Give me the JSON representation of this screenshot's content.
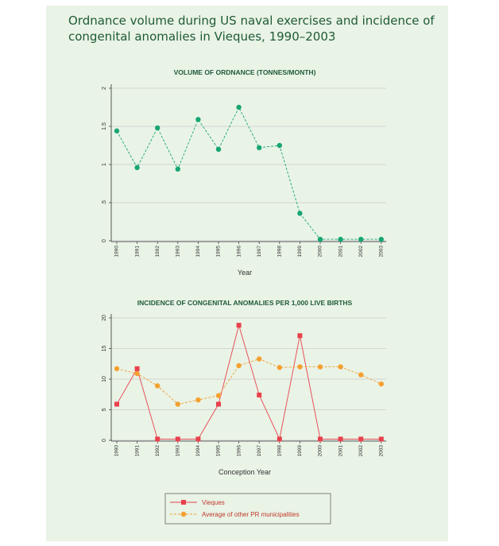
{
  "title": "Ordnance volume during US naval exercises and incidence of congenital anomalies in Vieques, 1990–2003",
  "colors": {
    "background": "#e9f3e6",
    "title": "#1f5a3a",
    "ordnance": "#17a673",
    "vieques": "#e8414c",
    "average": "#f5a030"
  },
  "chart_data": [
    {
      "type": "line",
      "title": "VOLUME OF ORDNANCE (TONNES/MONTH)",
      "xlabel": "Year",
      "ylabel": "",
      "categories": [
        "1990",
        "1991",
        "1992",
        "1993",
        "1994",
        "1995",
        "1996",
        "1997",
        "1998",
        "1999",
        "2000",
        "2001",
        "2002",
        "2003"
      ],
      "yticks": [
        "0",
        ".5",
        "1",
        "1.5",
        "2"
      ],
      "ylim": [
        0,
        2
      ],
      "grid": true,
      "series": [
        {
          "values": [
            1.44,
            0.96,
            1.48,
            0.94,
            1.59,
            1.2,
            1.75,
            1.22,
            1.25,
            0.36,
            0.02,
            0.02,
            0.02,
            0.02
          ]
        }
      ]
    },
    {
      "type": "line",
      "title": "INCIDENCE OF CONGENITAL ANOMALIES PER 1,000 LIVE BIRTHS",
      "xlabel": "Conception Year",
      "ylabel": "",
      "categories": [
        "1990",
        "1991",
        "1992",
        "1993",
        "1994",
        "1995",
        "1996",
        "1997",
        "1998",
        "1999",
        "2000",
        "2001",
        "2002",
        "2003"
      ],
      "yticks": [
        "0",
        "5",
        "10",
        "15",
        "20"
      ],
      "ylim": [
        0,
        20
      ],
      "grid": true,
      "legend_position": "bottom",
      "series": [
        {
          "name": "Vieques",
          "values": [
            5.9,
            11.7,
            0.2,
            0.2,
            0.2,
            5.9,
            18.8,
            7.4,
            0.2,
            17.1,
            0.2,
            0.2,
            0.2,
            0.2
          ]
        },
        {
          "name": "Average of other PR municipalities",
          "values": [
            11.7,
            10.9,
            8.9,
            5.9,
            6.6,
            7.3,
            12.2,
            13.3,
            11.9,
            12.0,
            12.0,
            12.0,
            10.7,
            9.2
          ]
        }
      ]
    }
  ]
}
